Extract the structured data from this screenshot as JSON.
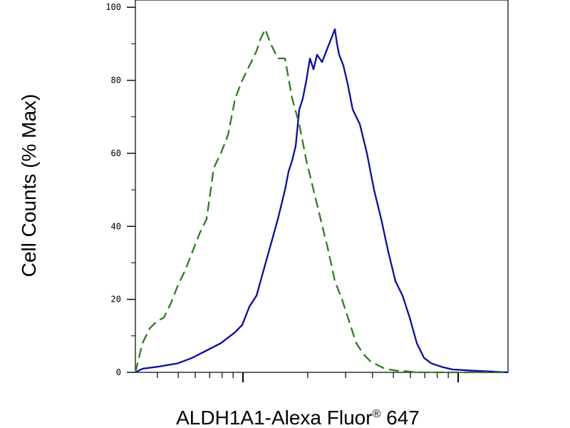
{
  "chart_data": {
    "type": "line",
    "title": "",
    "xlabel": "ALDH1A1-Alexa Fluor",
    "xlabel_mark": "®",
    "xlabel_suffix": " 647",
    "ylabel": "Cell Counts (% Max)",
    "x_scale": "log",
    "y_ticks": [
      0,
      20,
      40,
      60,
      80,
      100
    ],
    "ylim": [
      0,
      102
    ],
    "grid": false,
    "legend": "none",
    "series": [
      {
        "color": "#0a0aa8",
        "style": "solid",
        "points": [
          [
            0,
            0
          ],
          [
            10,
            1
          ],
          [
            30,
            1.5
          ],
          [
            60,
            2.5
          ],
          [
            80,
            4
          ],
          [
            100,
            6
          ],
          [
            120,
            8
          ],
          [
            140,
            11
          ],
          [
            150,
            13
          ],
          [
            160,
            18
          ],
          [
            170,
            21
          ],
          [
            180,
            28
          ],
          [
            190,
            35
          ],
          [
            200,
            42
          ],
          [
            210,
            50
          ],
          [
            215,
            55
          ],
          [
            220,
            58
          ],
          [
            225,
            62
          ],
          [
            230,
            72
          ],
          [
            235,
            75
          ],
          [
            240,
            80
          ],
          [
            245,
            86
          ],
          [
            250,
            83
          ],
          [
            255,
            87
          ],
          [
            262,
            85
          ],
          [
            268,
            88
          ],
          [
            274,
            91
          ],
          [
            280,
            94
          ],
          [
            283,
            90
          ],
          [
            286,
            87
          ],
          [
            292,
            84
          ],
          [
            298,
            79
          ],
          [
            305,
            72
          ],
          [
            315,
            68
          ],
          [
            325,
            60
          ],
          [
            335,
            50
          ],
          [
            345,
            42
          ],
          [
            355,
            33
          ],
          [
            365,
            25
          ],
          [
            375,
            21
          ],
          [
            385,
            15
          ],
          [
            395,
            8
          ],
          [
            405,
            4
          ],
          [
            415,
            2.5
          ],
          [
            430,
            1.5
          ],
          [
            445,
            0.8
          ],
          [
            470,
            0.5
          ],
          [
            523,
            0
          ]
        ]
      },
      {
        "color": "#2e7d1e",
        "style": "dashed",
        "points": [
          [
            0,
            0
          ],
          [
            10,
            8
          ],
          [
            20,
            12
          ],
          [
            30,
            14
          ],
          [
            40,
            15
          ],
          [
            50,
            19
          ],
          [
            60,
            24
          ],
          [
            70,
            28
          ],
          [
            80,
            33
          ],
          [
            90,
            38
          ],
          [
            100,
            42
          ],
          [
            110,
            56
          ],
          [
            120,
            60
          ],
          [
            130,
            65
          ],
          [
            140,
            75
          ],
          [
            150,
            80
          ],
          [
            160,
            84
          ],
          [
            170,
            88
          ],
          [
            175,
            91
          ],
          [
            182,
            94
          ],
          [
            190,
            90
          ],
          [
            200,
            86
          ],
          [
            210,
            86
          ],
          [
            220,
            75
          ],
          [
            230,
            68
          ],
          [
            240,
            58
          ],
          [
            250,
            50
          ],
          [
            260,
            42
          ],
          [
            270,
            34
          ],
          [
            280,
            25
          ],
          [
            290,
            20
          ],
          [
            300,
            14
          ],
          [
            310,
            8
          ],
          [
            320,
            5
          ],
          [
            330,
            3
          ],
          [
            340,
            2
          ],
          [
            350,
            1
          ],
          [
            365,
            0.5
          ],
          [
            380,
            0.3
          ],
          [
            400,
            0
          ],
          [
            523,
            0
          ]
        ]
      }
    ]
  }
}
